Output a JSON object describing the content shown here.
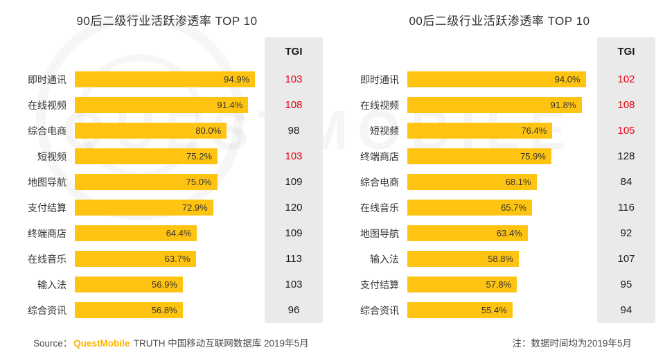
{
  "watermark": {
    "text": "QUESTMOBILE"
  },
  "colors": {
    "bar": "#FFC411",
    "bar_text": "#333333",
    "tgi_red": "#E60012",
    "tgi_text": "#1a1a1a",
    "tgi_col_bg": "#EAEAEA",
    "brand": "#FDB300"
  },
  "chart_data": [
    {
      "type": "bar",
      "orientation": "horizontal",
      "title": "90后二级行业活跃渗透率 TOP 10",
      "tgi_header": "TGI",
      "categories": [
        "即时通讯",
        "在线视频",
        "综合电商",
        "短视频",
        "地图导航",
        "支付结算",
        "终端商店",
        "在线音乐",
        "输入法",
        "综合资讯"
      ],
      "values": [
        94.9,
        91.4,
        80.0,
        75.2,
        75.0,
        72.9,
        64.4,
        63.7,
        56.9,
        56.8
      ],
      "value_labels": [
        "94.9%",
        "91.4%",
        "80.0%",
        "75.2%",
        "75.0%",
        "72.9%",
        "64.4%",
        "63.7%",
        "56.9%",
        "56.8%"
      ],
      "tgi": [
        103,
        108,
        98,
        103,
        109,
        120,
        109,
        113,
        103,
        96
      ],
      "tgi_red": [
        true,
        true,
        false,
        true,
        false,
        false,
        false,
        false,
        false,
        false
      ],
      "xlim": [
        0,
        100
      ],
      "unit": "%"
    },
    {
      "type": "bar",
      "orientation": "horizontal",
      "title": "00后二级行业活跃渗透率 TOP 10",
      "tgi_header": "TGI",
      "categories": [
        "即时通讯",
        "在线视频",
        "短视频",
        "终端商店",
        "综合电商",
        "在线音乐",
        "地图导航",
        "输入法",
        "支付结算",
        "综合资讯"
      ],
      "values": [
        94.0,
        91.8,
        76.4,
        75.9,
        68.1,
        65.7,
        63.4,
        58.8,
        57.8,
        55.4
      ],
      "value_labels": [
        "94.0%",
        "91.8%",
        "76.4%",
        "75.9%",
        "68.1%",
        "65.7%",
        "63.4%",
        "58.8%",
        "57.8%",
        "55.4%"
      ],
      "tgi": [
        102,
        108,
        105,
        128,
        84,
        116,
        92,
        107,
        95,
        94
      ],
      "tgi_red": [
        true,
        true,
        true,
        false,
        false,
        false,
        false,
        false,
        false,
        false
      ],
      "xlim": [
        0,
        100
      ],
      "unit": "%"
    }
  ],
  "footer": {
    "source_prefix": "Source：",
    "source_brand": "QuestMobile",
    "source_suffix": " TRUTH 中国移动互联网数据库 2019年5月",
    "note": "注：数据时间均为2019年5月"
  }
}
